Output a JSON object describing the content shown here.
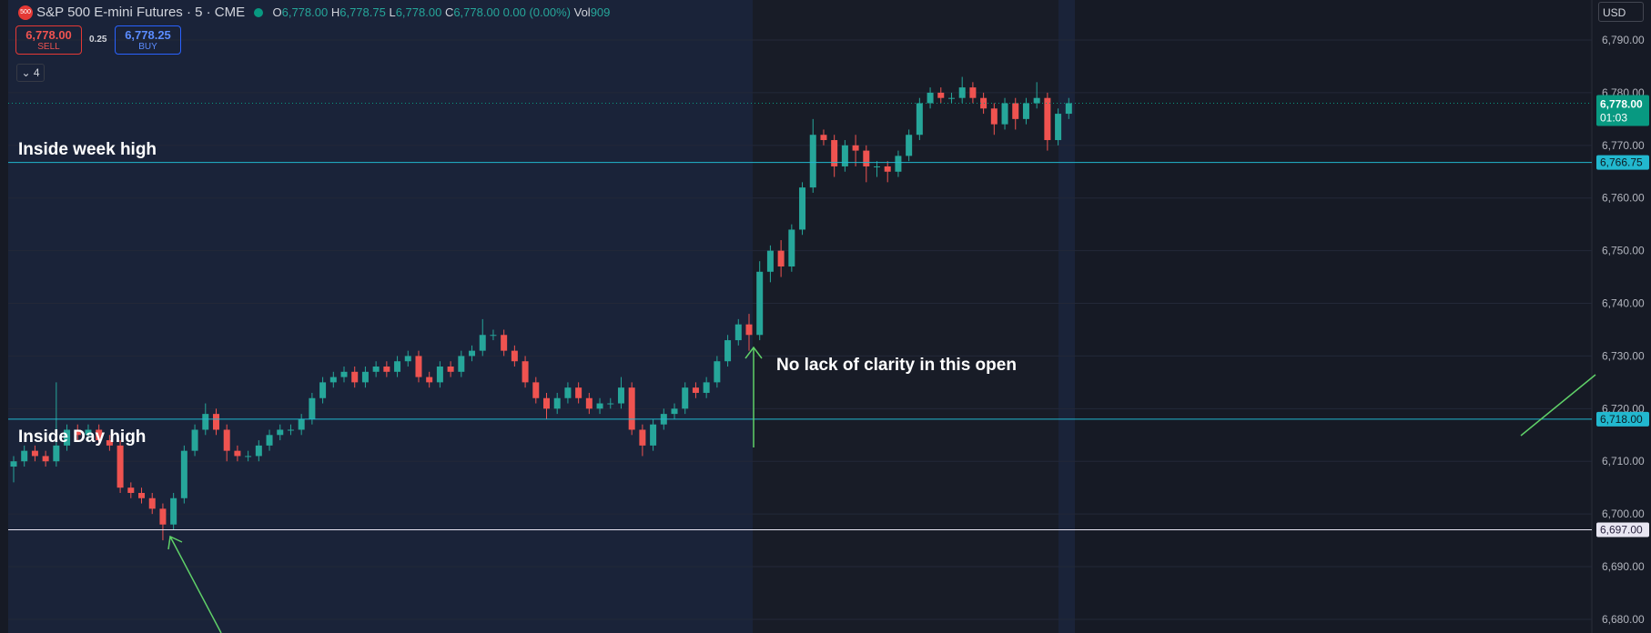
{
  "header": {
    "badge": "500",
    "symbol": "S&P 500 E-mini Futures · 5 · CME",
    "o_key": "O",
    "o": "6,778.00",
    "h_key": "H",
    "h": "6,778.75",
    "l_key": "L",
    "l": "6,778.00",
    "c_key": "C",
    "c": "6,778.00",
    "change": "0.00 (0.00%)",
    "vol_key": "Vol",
    "vol": "909",
    "sell_price": "6,778.00",
    "sell": "SELL",
    "spread": "0.25",
    "buy_price": "6,778.25",
    "buy": "BUY",
    "indicators": "4",
    "currency": "USD"
  },
  "chart_data": {
    "type": "candlestick",
    "up_color": "#26a69a",
    "down_color": "#ef5350",
    "ylim": [
      6677.4,
      6797.6
    ],
    "yticks": [
      {
        "value": 6680,
        "label": "6,680.00"
      },
      {
        "value": 6690,
        "label": "6,690.00"
      },
      {
        "value": 6700,
        "label": "6,700.00"
      },
      {
        "value": 6710,
        "label": "6,710.00"
      },
      {
        "value": 6720,
        "label": "6,720.00"
      },
      {
        "value": 6730,
        "label": "6,730.00"
      },
      {
        "value": 6740,
        "label": "6,740.00"
      },
      {
        "value": 6750,
        "label": "6,750.00"
      },
      {
        "value": 6760,
        "label": "6,760.00"
      },
      {
        "value": 6770,
        "label": "6,770.00"
      },
      {
        "value": 6780,
        "label": "6,780.00"
      },
      {
        "value": 6790,
        "label": "6,790.00"
      }
    ],
    "grid": true,
    "open": [
      6709,
      6710,
      6712,
      6711,
      6710,
      6713,
      6716,
      6715,
      6716,
      6714,
      6713,
      6705,
      6704,
      6703,
      6701,
      6698,
      6703,
      6712,
      6716,
      6719,
      6716,
      6712,
      6711,
      6711,
      6713,
      6715,
      6716,
      6716,
      6718,
      6722,
      6725,
      6726,
      6727,
      6725,
      6727,
      6728,
      6727,
      6729,
      6730,
      6726,
      6725,
      6728,
      6727,
      6730,
      6731,
      6734,
      6734,
      6731,
      6729,
      6725,
      6722,
      6720,
      6722,
      6724,
      6722,
      6720,
      6721,
      6721,
      6724,
      6716,
      6713,
      6717,
      6719,
      6720,
      6724,
      6723,
      6725,
      6729,
      6733,
      6736,
      6734,
      6746,
      6750,
      6747,
      6754,
      6762,
      6772,
      6771,
      6766,
      6770,
      6769,
      6766,
      6766,
      6765,
      6768,
      6772,
      6778,
      6780,
      6779,
      6779,
      6781,
      6779,
      6777,
      6774,
      6778,
      6775,
      6778,
      6779,
      6771,
      6776
    ],
    "high": [
      6711,
      6713,
      6713,
      6712,
      6725,
      6717,
      6717,
      6717,
      6717,
      6715,
      6714,
      6706,
      6705,
      6704,
      6702,
      6704,
      6713,
      6717,
      6721,
      6720,
      6717,
      6713,
      6712,
      6714,
      6716,
      6717,
      6717,
      6719,
      6723,
      6726,
      6727,
      6728,
      6728,
      6728,
      6729,
      6729,
      6730,
      6731,
      6731,
      6727,
      6729,
      6729,
      6731,
      6732,
      6737,
      6735,
      6735,
      6732,
      6730,
      6726,
      6723,
      6723,
      6725,
      6725,
      6723,
      6722,
      6722,
      6726,
      6725,
      6717,
      6718,
      6720,
      6721,
      6725,
      6725,
      6726,
      6730,
      6734,
      6737,
      6738,
      6748,
      6751,
      6752,
      6755,
      6763,
      6775,
      6773,
      6772,
      6771,
      6772,
      6770,
      6767,
      6767,
      6769,
      6773,
      6779,
      6781,
      6781,
      6780,
      6783,
      6782,
      6780,
      6778,
      6779,
      6779,
      6779,
      6782,
      6780,
      6777,
      6779
    ],
    "low": [
      6706,
      6709,
      6710,
      6709,
      6709,
      6712,
      6714,
      6714,
      6713,
      6712,
      6704,
      6703,
      6702,
      6700,
      6695,
      6697,
      6702,
      6711,
      6715,
      6715,
      6710,
      6710,
      6710,
      6710,
      6712,
      6714,
      6715,
      6715,
      6717,
      6721,
      6724,
      6725,
      6724,
      6724,
      6726,
      6726,
      6726,
      6728,
      6725,
      6724,
      6724,
      6726,
      6726,
      6729,
      6730,
      6733,
      6730,
      6728,
      6724,
      6721,
      6718,
      6719,
      6721,
      6721,
      6719,
      6719,
      6720,
      6720,
      6715,
      6711,
      6712,
      6716,
      6718,
      6719,
      6722,
      6722,
      6724,
      6728,
      6732,
      6731,
      6733,
      6744,
      6745,
      6746,
      6753,
      6761,
      6770,
      6764,
      6765,
      6766,
      6763,
      6764,
      6763,
      6764,
      6767,
      6771,
      6777,
      6778,
      6778,
      6778,
      6778,
      6776,
      6772,
      6773,
      6773,
      6774,
      6777,
      6769,
      6770,
      6775
    ],
    "close": [
      6710,
      6712,
      6711,
      6710,
      6713,
      6716,
      6715,
      6716,
      6714,
      6713,
      6705,
      6704,
      6703,
      6701,
      6698,
      6703,
      6712,
      6716,
      6719,
      6716,
      6712,
      6711,
      6711,
      6713,
      6715,
      6716,
      6716,
      6718,
      6722,
      6725,
      6726,
      6727,
      6725,
      6727,
      6728,
      6727,
      6729,
      6730,
      6726,
      6725,
      6728,
      6727,
      6730,
      6731,
      6734,
      6734,
      6731,
      6729,
      6725,
      6722,
      6720,
      6722,
      6724,
      6722,
      6720,
      6721,
      6721,
      6724,
      6716,
      6713,
      6717,
      6719,
      6720,
      6724,
      6723,
      6725,
      6729,
      6733,
      6736,
      6734,
      6746,
      6750,
      6747,
      6754,
      6762,
      6772,
      6771,
      6766,
      6770,
      6769,
      6766,
      6766,
      6765,
      6768,
      6772,
      6778,
      6780,
      6779,
      6779,
      6781,
      6779,
      6777,
      6774,
      6778,
      6775,
      6778,
      6779,
      6771,
      6776,
      6778
    ],
    "last": {
      "value": 6778,
      "label": "6,778.00",
      "countdown": "01:03",
      "color": "#089981"
    },
    "hlines": [
      {
        "value": 6766.75,
        "label": "6,766.75",
        "color": "#22b8cf",
        "text_color": "#0d1b22"
      },
      {
        "value": 6718,
        "label": "6,718.00",
        "color": "#22b8cf",
        "text_color": "#0d1b22"
      },
      {
        "value": 6697,
        "label": "6,697.00",
        "color": "#e8e6f2",
        "text_color": "#2a2440"
      }
    ],
    "annotations": [
      "Inside week high",
      "Inside Day high",
      "No lack of clarity in this open"
    ]
  }
}
